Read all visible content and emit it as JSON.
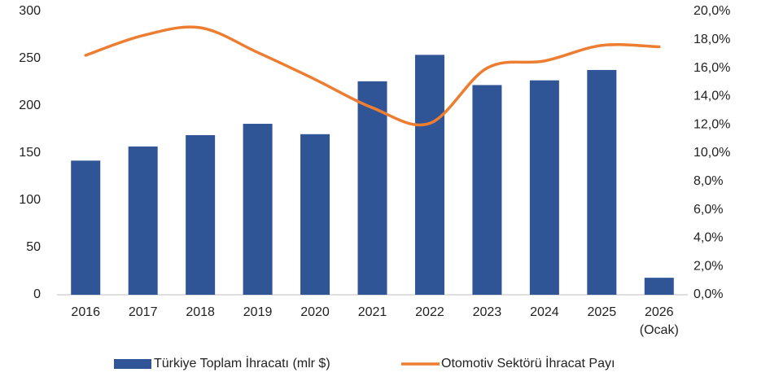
{
  "chart_data": {
    "type": "bar",
    "categories": [
      "2016",
      "2017",
      "2018",
      "2019",
      "2020",
      "2021",
      "2022",
      "2023",
      "2024",
      "2025",
      "2026 (Ocak)"
    ],
    "series": [
      {
        "name": "Türkiye Toplam İhracatı (mlr $)",
        "type": "bar",
        "color": "#2f5597",
        "values": [
          142,
          157,
          169,
          181,
          170,
          226,
          254,
          222,
          227,
          238,
          18
        ]
      },
      {
        "name": "Otomotiv Sektörü İhracat Payı",
        "type": "line",
        "axis": "y2",
        "color": "#ed7d31",
        "values": [
          16.9,
          18.3,
          18.85,
          17.1,
          15.2,
          13.2,
          12.1,
          16.0,
          16.5,
          17.6,
          17.5
        ]
      }
    ],
    "ylim": [
      0,
      300
    ],
    "yticks": [
      0,
      50,
      100,
      150,
      200,
      250,
      300
    ],
    "y2lim": [
      0,
      20
    ],
    "y2ticks": [
      {
        "value": 0,
        "label": "0,0%"
      },
      {
        "value": 2,
        "label": "2,0%"
      },
      {
        "value": 4,
        "label": "4,0%"
      },
      {
        "value": 6,
        "label": "6,0%"
      },
      {
        "value": 8,
        "label": "8,0%"
      },
      {
        "value": 10,
        "label": "10,0%"
      },
      {
        "value": 12,
        "label": "12,0%"
      },
      {
        "value": 14,
        "label": "14,0%"
      },
      {
        "value": 16,
        "label": "16,0%"
      },
      {
        "value": 18,
        "label": "18,0%"
      },
      {
        "value": 20,
        "label": "20,0%"
      }
    ],
    "grid": false,
    "legend": "bottom"
  }
}
